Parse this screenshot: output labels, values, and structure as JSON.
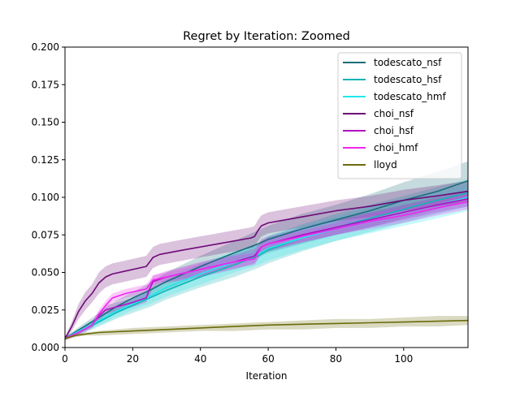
{
  "chart_data": {
    "type": "line",
    "title": "Regret by Iteration: Zoomed",
    "xlabel": "Iteration",
    "ylabel": "",
    "xlim": [
      0,
      119
    ],
    "ylim": [
      0,
      0.2
    ],
    "xticks": [
      0,
      20,
      40,
      60,
      80,
      100
    ],
    "xtick_labels": [
      "0",
      "20",
      "40",
      "60",
      "80",
      "100"
    ],
    "yticks": [
      0,
      0.025,
      0.05,
      0.075,
      0.1,
      0.125,
      0.15,
      0.175,
      0.2
    ],
    "ytick_labels": [
      "0.000",
      "0.025",
      "0.050",
      "0.075",
      "0.100",
      "0.125",
      "0.150",
      "0.175",
      "0.200"
    ],
    "grid": false,
    "legend_position": "top-right",
    "series": [
      {
        "name": "todescato_nsf",
        "color": "#1a6e7a",
        "x": [
          0,
          5,
          10,
          15,
          20,
          25,
          30,
          40,
          50,
          57,
          60,
          70,
          80,
          90,
          100,
          110,
          119
        ],
        "y": [
          0.006,
          0.013,
          0.02,
          0.027,
          0.033,
          0.038,
          0.044,
          0.054,
          0.063,
          0.069,
          0.072,
          0.079,
          0.085,
          0.091,
          0.098,
          0.104,
          0.111
        ],
        "band_low": [
          0.005,
          0.011,
          0.017,
          0.023,
          0.029,
          0.033,
          0.038,
          0.047,
          0.055,
          0.06,
          0.063,
          0.069,
          0.075,
          0.08,
          0.086,
          0.092,
          0.098
        ],
        "band_high": [
          0.007,
          0.015,
          0.023,
          0.031,
          0.037,
          0.043,
          0.05,
          0.061,
          0.071,
          0.078,
          0.081,
          0.089,
          0.095,
          0.102,
          0.11,
          0.117,
          0.124
        ]
      },
      {
        "name": "todescato_hsf",
        "color": "#12b5b5",
        "x": [
          0,
          5,
          10,
          15,
          20,
          25,
          30,
          40,
          50,
          57,
          60,
          70,
          80,
          90,
          100,
          110,
          119
        ],
        "y": [
          0.006,
          0.011,
          0.017,
          0.023,
          0.028,
          0.033,
          0.038,
          0.047,
          0.055,
          0.061,
          0.065,
          0.073,
          0.08,
          0.086,
          0.092,
          0.098,
          0.103
        ],
        "band_low": [
          0.005,
          0.009,
          0.014,
          0.019,
          0.023,
          0.027,
          0.032,
          0.04,
          0.047,
          0.053,
          0.056,
          0.064,
          0.071,
          0.077,
          0.083,
          0.089,
          0.094
        ],
        "band_high": [
          0.007,
          0.013,
          0.02,
          0.027,
          0.033,
          0.039,
          0.044,
          0.054,
          0.063,
          0.069,
          0.074,
          0.082,
          0.089,
          0.095,
          0.101,
          0.107,
          0.112
        ]
      },
      {
        "name": "todescato_hmf",
        "color": "#22e8ee",
        "x": [
          0,
          5,
          10,
          15,
          20,
          25,
          30,
          40,
          50,
          57,
          60,
          70,
          80,
          90,
          100,
          110,
          119
        ],
        "y": [
          0.006,
          0.012,
          0.018,
          0.024,
          0.029,
          0.034,
          0.04,
          0.049,
          0.057,
          0.062,
          0.066,
          0.073,
          0.079,
          0.085,
          0.09,
          0.095,
          0.1
        ],
        "band_low": [
          0.005,
          0.01,
          0.015,
          0.02,
          0.025,
          0.029,
          0.034,
          0.042,
          0.05,
          0.055,
          0.058,
          0.065,
          0.071,
          0.076,
          0.081,
          0.086,
          0.091
        ],
        "band_high": [
          0.007,
          0.014,
          0.021,
          0.028,
          0.033,
          0.039,
          0.046,
          0.056,
          0.064,
          0.069,
          0.074,
          0.081,
          0.087,
          0.094,
          0.099,
          0.104,
          0.109
        ]
      },
      {
        "name": "choi_nsf",
        "color": "#6e0a78",
        "x": [
          0,
          2,
          4,
          6,
          8,
          10,
          12,
          14,
          18,
          22,
          24,
          25,
          26,
          28,
          35,
          45,
          55,
          56,
          57,
          58,
          60,
          65,
          70,
          80,
          90,
          100,
          110,
          119
        ],
        "y": [
          0.006,
          0.014,
          0.024,
          0.031,
          0.036,
          0.043,
          0.047,
          0.049,
          0.051,
          0.053,
          0.054,
          0.057,
          0.06,
          0.062,
          0.065,
          0.069,
          0.073,
          0.074,
          0.078,
          0.081,
          0.083,
          0.085,
          0.087,
          0.091,
          0.094,
          0.098,
          0.101,
          0.104
        ],
        "band_low": [
          0.005,
          0.011,
          0.019,
          0.025,
          0.03,
          0.036,
          0.04,
          0.042,
          0.044,
          0.046,
          0.047,
          0.05,
          0.053,
          0.055,
          0.058,
          0.062,
          0.066,
          0.067,
          0.071,
          0.074,
          0.076,
          0.078,
          0.08,
          0.084,
          0.087,
          0.091,
          0.094,
          0.097
        ],
        "band_high": [
          0.007,
          0.017,
          0.029,
          0.037,
          0.042,
          0.05,
          0.054,
          0.056,
          0.058,
          0.06,
          0.061,
          0.064,
          0.067,
          0.069,
          0.072,
          0.076,
          0.08,
          0.081,
          0.085,
          0.088,
          0.09,
          0.092,
          0.094,
          0.098,
          0.101,
          0.105,
          0.108,
          0.111
        ]
      },
      {
        "name": "choi_hsf",
        "color": "#b210c2",
        "x": [
          0,
          4,
          8,
          10,
          12,
          15,
          20,
          24,
          25,
          26,
          30,
          40,
          50,
          56,
          57,
          58,
          60,
          70,
          80,
          90,
          100,
          110,
          119
        ],
        "y": [
          0.006,
          0.01,
          0.015,
          0.021,
          0.025,
          0.027,
          0.03,
          0.033,
          0.039,
          0.044,
          0.047,
          0.052,
          0.057,
          0.061,
          0.064,
          0.067,
          0.069,
          0.075,
          0.08,
          0.085,
          0.09,
          0.095,
          0.099
        ],
        "band_low": [
          0.005,
          0.009,
          0.013,
          0.018,
          0.022,
          0.024,
          0.027,
          0.03,
          0.035,
          0.04,
          0.043,
          0.047,
          0.052,
          0.056,
          0.059,
          0.062,
          0.064,
          0.07,
          0.075,
          0.08,
          0.085,
          0.09,
          0.094
        ],
        "band_high": [
          0.007,
          0.011,
          0.017,
          0.024,
          0.028,
          0.03,
          0.033,
          0.036,
          0.043,
          0.048,
          0.051,
          0.057,
          0.062,
          0.066,
          0.069,
          0.072,
          0.074,
          0.08,
          0.085,
          0.09,
          0.095,
          0.1,
          0.104
        ]
      },
      {
        "name": "choi_hmf",
        "color": "#f026f0",
        "x": [
          0,
          4,
          8,
          10,
          12,
          14,
          18,
          22,
          24,
          25,
          26,
          30,
          40,
          50,
          56,
          57,
          58,
          60,
          70,
          80,
          90,
          100,
          110,
          119
        ],
        "y": [
          0.006,
          0.01,
          0.015,
          0.022,
          0.028,
          0.033,
          0.036,
          0.038,
          0.039,
          0.042,
          0.045,
          0.047,
          0.052,
          0.057,
          0.059,
          0.063,
          0.067,
          0.069,
          0.074,
          0.079,
          0.084,
          0.088,
          0.093,
          0.097
        ],
        "band_low": [
          0.005,
          0.008,
          0.013,
          0.019,
          0.025,
          0.03,
          0.033,
          0.035,
          0.036,
          0.039,
          0.042,
          0.044,
          0.048,
          0.053,
          0.055,
          0.059,
          0.063,
          0.065,
          0.07,
          0.075,
          0.079,
          0.083,
          0.088,
          0.092
        ],
        "band_high": [
          0.007,
          0.012,
          0.017,
          0.025,
          0.031,
          0.036,
          0.039,
          0.041,
          0.042,
          0.045,
          0.048,
          0.05,
          0.056,
          0.061,
          0.063,
          0.067,
          0.071,
          0.073,
          0.078,
          0.083,
          0.089,
          0.093,
          0.098,
          0.102
        ]
      },
      {
        "name": "lloyd",
        "color": "#6b6b0a",
        "x": [
          0,
          3,
          6,
          10,
          20,
          30,
          40,
          50,
          60,
          70,
          80,
          90,
          100,
          110,
          119
        ],
        "y": [
          0.006,
          0.008,
          0.009,
          0.01,
          0.011,
          0.012,
          0.013,
          0.014,
          0.015,
          0.0155,
          0.016,
          0.0165,
          0.017,
          0.0175,
          0.018
        ],
        "band_low": [
          0.005,
          0.007,
          0.008,
          0.008,
          0.009,
          0.01,
          0.011,
          0.011,
          0.012,
          0.012,
          0.013,
          0.013,
          0.014,
          0.014,
          0.015
        ],
        "band_high": [
          0.007,
          0.009,
          0.01,
          0.011,
          0.013,
          0.014,
          0.015,
          0.016,
          0.017,
          0.018,
          0.019,
          0.019,
          0.02,
          0.021,
          0.021
        ]
      }
    ]
  }
}
